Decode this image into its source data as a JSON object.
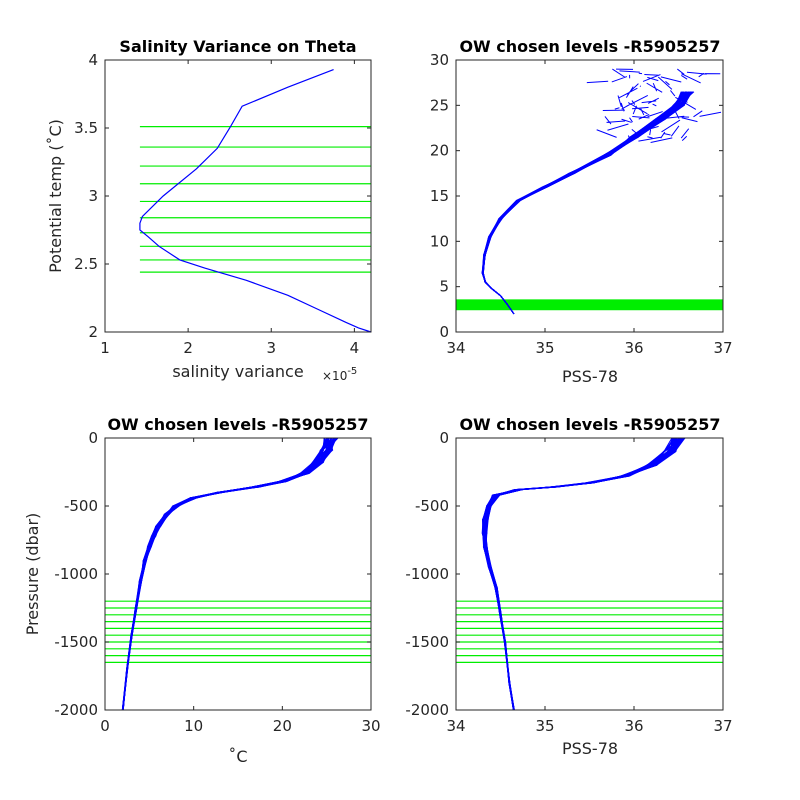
{
  "colors": {
    "profile": "#0000ff",
    "levels": "#00ee00",
    "axes": "#262626"
  },
  "chart_data": [
    {
      "id": "p1",
      "type": "line",
      "title": "Salinity Variance on Theta",
      "xlabel": "salinity variance",
      "x_exponent": "×10",
      "x_exponent_power": "-5",
      "ylabel": "Potential temp (˚C)",
      "xlim": [
        1,
        4.2
      ],
      "ylim": [
        2,
        4
      ],
      "xticks": [
        "1",
        "2",
        "3",
        "4"
      ],
      "yticks": [
        "2",
        "2.5",
        "3",
        "3.5",
        "4"
      ],
      "series": [
        {
          "x": [
            4.2,
            4.05,
            3.9,
            3.55,
            3.2,
            2.7,
            2.2,
            1.9,
            1.65,
            1.52,
            1.42,
            1.42,
            1.45,
            1.7,
            2.1,
            2.35,
            2.5,
            2.65,
            3.2,
            3.75
          ],
          "y": [
            2.0,
            2.03,
            2.07,
            2.17,
            2.27,
            2.38,
            2.47,
            2.53,
            2.63,
            2.7,
            2.75,
            2.8,
            2.85,
            3.0,
            3.2,
            3.35,
            3.5,
            3.66,
            3.8,
            3.93
          ]
        }
      ],
      "hlines": [
        2.44,
        2.53,
        2.63,
        2.73,
        2.84,
        2.96,
        3.09,
        3.22,
        3.36,
        3.51
      ]
    },
    {
      "id": "p2",
      "type": "line",
      "title": "OW chosen levels -R5905257",
      "xlabel": "PSS-78",
      "ylabel": "",
      "xlim": [
        34,
        37
      ],
      "ylim": [
        0,
        30
      ],
      "xticks": [
        "34",
        "35",
        "36",
        "37"
      ],
      "yticks": [
        "0",
        "5",
        "10",
        "15",
        "20",
        "25",
        "30"
      ],
      "band": [
        2.4,
        3.6
      ],
      "profile": {
        "x": [
          34.65,
          34.58,
          34.5,
          34.4,
          34.33,
          34.3,
          34.32,
          34.38,
          34.5,
          34.7,
          35.0,
          35.3,
          35.7,
          36.0,
          36.3,
          36.5,
          36.6
        ],
        "y": [
          2.0,
          3.0,
          4.0,
          4.8,
          5.5,
          6.5,
          8.5,
          10.5,
          12.5,
          14.5,
          16.0,
          17.5,
          19.5,
          21.5,
          23.5,
          25.0,
          26.5
        ]
      },
      "noise": {
        "xmin": 35.7,
        "xmax": 36.8,
        "ymin": 21,
        "ymax": 29
      }
    },
    {
      "id": "p3",
      "type": "line",
      "title": "OW chosen levels -R5905257",
      "xlabel": "˚C",
      "ylabel": "Pressure (dbar)",
      "xlim": [
        0,
        30
      ],
      "ylim": [
        -2000,
        0
      ],
      "xticks": [
        "0",
        "10",
        "20",
        "30"
      ],
      "yticks": [
        "-2000",
        "-1500",
        "-1000",
        "-500",
        "0"
      ],
      "profile": {
        "x": [
          2.0,
          2.5,
          3.0,
          3.5,
          4.0,
          4.5,
          5.0,
          5.5,
          6.0,
          7.0,
          8.0,
          10.0,
          13.0,
          17.0,
          20.0,
          22.5,
          24.0,
          25.0,
          25.5
        ],
        "y": [
          -2000,
          -1700,
          -1450,
          -1250,
          -1050,
          -900,
          -800,
          -720,
          -650,
          -560,
          -500,
          -440,
          -400,
          -360,
          -320,
          -260,
          -180,
          -90,
          0
        ]
      },
      "hlines": [
        -1200,
        -1250,
        -1300,
        -1350,
        -1400,
        -1450,
        -1500,
        -1550,
        -1600,
        -1650
      ]
    },
    {
      "id": "p4",
      "type": "line",
      "title": "OW chosen levels -R5905257",
      "xlabel": "PSS-78",
      "ylabel": "",
      "xlim": [
        34,
        37
      ],
      "ylim": [
        -2000,
        0
      ],
      "xticks": [
        "34",
        "35",
        "36",
        "37"
      ],
      "yticks": [
        "-2000",
        "-1500",
        "-1000",
        "-500",
        "0"
      ],
      "profile": {
        "x": [
          34.65,
          34.6,
          34.55,
          34.5,
          34.45,
          34.38,
          34.33,
          34.32,
          34.33,
          34.36,
          34.45,
          34.7,
          35.1,
          35.5,
          35.9,
          36.2,
          36.4,
          36.5
        ],
        "y": [
          -2000,
          -1800,
          -1500,
          -1300,
          -1100,
          -950,
          -800,
          -700,
          -600,
          -500,
          -420,
          -380,
          -360,
          -330,
          -280,
          -200,
          -100,
          0
        ]
      },
      "hlines": [
        -1200,
        -1250,
        -1300,
        -1350,
        -1400,
        -1450,
        -1500,
        -1550,
        -1600,
        -1650
      ]
    }
  ]
}
